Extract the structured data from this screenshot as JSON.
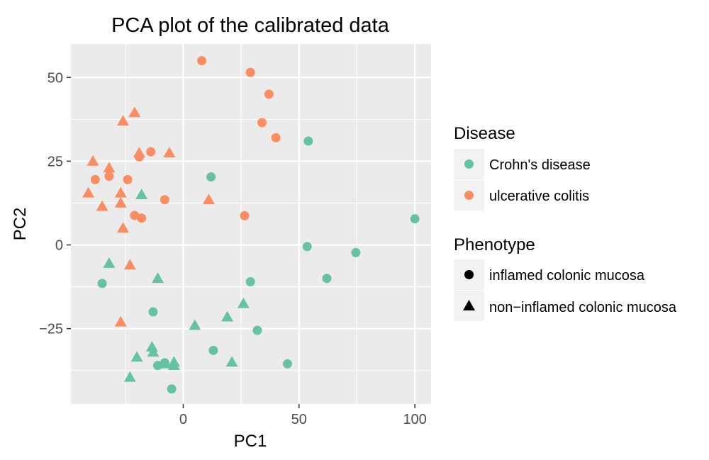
{
  "chart_data": {
    "type": "scatter",
    "title": "PCA plot of the calibrated data",
    "xlabel": "PC1",
    "ylabel": "PC2",
    "xlim": [
      -48.5,
      107
    ],
    "ylim": [
      -47.5,
      60
    ],
    "x_ticks": [
      0,
      50,
      100
    ],
    "x_tick_labels": [
      "0",
      "50",
      "100"
    ],
    "y_ticks": [
      50,
      25,
      0,
      -25
    ],
    "y_tick_labels": [
      "50",
      "25",
      "0",
      "−25"
    ],
    "grid": true,
    "background": "#ebebeb",
    "legend_position": "right",
    "legends": [
      {
        "title": "Disease",
        "entries": [
          {
            "label": "Crohn's disease",
            "color": "#66c2a5",
            "shape": "circle"
          },
          {
            "label": "ulcerative colitis",
            "color": "#fc8d62",
            "shape": "circle"
          }
        ]
      },
      {
        "title": "Phenotype",
        "entries": [
          {
            "label": "inflamed colonic mucosa",
            "color": "#000000",
            "shape": "circle"
          },
          {
            "label": "non−inflamed colonic mucosa",
            "color": "#000000",
            "shape": "triangle"
          }
        ]
      }
    ],
    "series": [
      {
        "disease": "Crohn's disease",
        "phenotype": "inflamed colonic mucosa",
        "color": "#66c2a5",
        "shape": "circle",
        "x": [
          54,
          12,
          100,
          53.5,
          74.5,
          62,
          29,
          32,
          13,
          45,
          -35,
          -13,
          -11,
          -8,
          -5
        ],
        "y": [
          31,
          20.3,
          7.8,
          -0.5,
          -2.3,
          -10,
          -11,
          -25.5,
          -31.5,
          -35.5,
          -11.5,
          -20,
          -36,
          -35.2,
          -43
        ]
      },
      {
        "disease": "Crohn's disease",
        "phenotype": "non−inflamed colonic mucosa",
        "color": "#66c2a5",
        "shape": "triangle",
        "x": [
          -18,
          -32,
          -11,
          26,
          19,
          -4,
          -13.5,
          -13,
          -20,
          -4,
          -8,
          21,
          -23,
          5
        ],
        "y": [
          15,
          -5.5,
          -10,
          -17.5,
          -21.5,
          -35,
          -30.5,
          -32,
          -33.5,
          -36,
          -35.5,
          -35,
          -39.5,
          -24
        ]
      },
      {
        "disease": "ulcerative colitis",
        "phenotype": "inflamed colonic mucosa",
        "color": "#fc8d62",
        "shape": "circle",
        "x": [
          8,
          29,
          37,
          34,
          40,
          -14,
          -19,
          -24,
          -32,
          -38,
          -21,
          -18,
          -8,
          26.5
        ],
        "y": [
          55,
          51.5,
          45,
          36.5,
          32,
          27.8,
          26.3,
          19.5,
          20.5,
          19.5,
          8.8,
          8,
          13.5,
          8.7
        ]
      },
      {
        "disease": "ulcerative colitis",
        "phenotype": "non−inflamed colonic mucosa",
        "color": "#fc8d62",
        "shape": "triangle",
        "x": [
          -21,
          -26,
          -19,
          -6,
          -39,
          -32,
          -41,
          -35,
          -27,
          -27,
          -26,
          -23,
          11,
          -27
        ],
        "y": [
          39.5,
          37,
          27.5,
          27.5,
          25,
          23,
          15.5,
          11.5,
          15.5,
          12.5,
          5,
          -6,
          13.5,
          -23
        ]
      }
    ]
  }
}
